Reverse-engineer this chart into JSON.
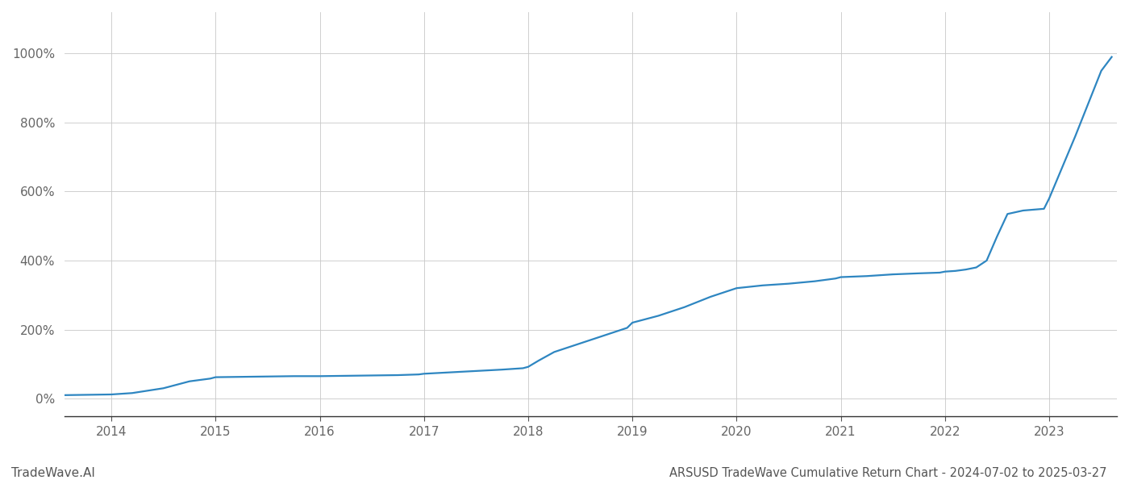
{
  "title": "ARSUSD TradeWave Cumulative Return Chart - 2024-07-02 to 2025-03-27",
  "watermark": "TradeWave.AI",
  "line_color": "#2e86c1",
  "background_color": "#ffffff",
  "grid_color": "#c8c8c8",
  "x_years": [
    2014,
    2015,
    2016,
    2017,
    2018,
    2019,
    2020,
    2021,
    2022,
    2023
  ],
  "y_ticks": [
    0,
    200,
    400,
    600,
    800,
    1000
  ],
  "xlim": [
    2013.55,
    2023.65
  ],
  "ylim": [
    -50,
    1120
  ],
  "data_x": [
    2013.55,
    2014.0,
    2014.2,
    2014.5,
    2014.75,
    2014.95,
    2015.0,
    2015.25,
    2015.5,
    2015.75,
    2015.95,
    2016.0,
    2016.25,
    2016.5,
    2016.75,
    2016.95,
    2017.0,
    2017.25,
    2017.5,
    2017.75,
    2017.95,
    2018.0,
    2018.1,
    2018.25,
    2018.5,
    2018.75,
    2018.95,
    2019.0,
    2019.25,
    2019.5,
    2019.75,
    2019.95,
    2020.0,
    2020.25,
    2020.5,
    2020.75,
    2020.95,
    2021.0,
    2021.25,
    2021.5,
    2021.75,
    2021.95,
    2022.0,
    2022.1,
    2022.2,
    2022.3,
    2022.4,
    2022.5,
    2022.6,
    2022.75,
    2022.95,
    2023.0,
    2023.25,
    2023.5,
    2023.6
  ],
  "data_y": [
    10,
    12,
    16,
    30,
    50,
    58,
    62,
    63,
    64,
    65,
    65,
    65,
    66,
    67,
    68,
    70,
    72,
    76,
    80,
    84,
    88,
    92,
    110,
    135,
    160,
    185,
    205,
    220,
    240,
    265,
    295,
    315,
    320,
    328,
    333,
    340,
    348,
    352,
    355,
    360,
    363,
    365,
    368,
    370,
    374,
    380,
    400,
    470,
    535,
    545,
    550,
    580,
    760,
    950,
    990
  ],
  "title_fontsize": 10.5,
  "tick_fontsize": 11,
  "watermark_fontsize": 11,
  "line_width": 1.6
}
